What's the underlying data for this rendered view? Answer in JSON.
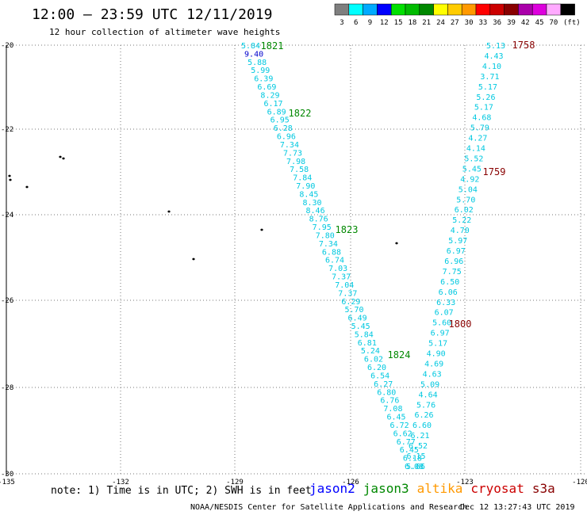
{
  "header": {
    "title": "12:00 – 23:59 UTC 12/11/2019",
    "subtitle": "12 hour collection of altimeter wave heights"
  },
  "legend": {
    "unit": "(ft)",
    "bins": [
      {
        "label": "3",
        "color": "#7f7f7f"
      },
      {
        "label": "6",
        "color": "#00ffff"
      },
      {
        "label": "9",
        "color": "#00aaff"
      },
      {
        "label": "12",
        "color": "#0000ff"
      },
      {
        "label": "15",
        "color": "#00e000"
      },
      {
        "label": "18",
        "color": "#00bb00"
      },
      {
        "label": "21",
        "color": "#008800"
      },
      {
        "label": "24",
        "color": "#ffff00"
      },
      {
        "label": "27",
        "color": "#ffcc00"
      },
      {
        "label": "30",
        "color": "#ff9900"
      },
      {
        "label": "33",
        "color": "#ff0000"
      },
      {
        "label": "36",
        "color": "#cc0000"
      },
      {
        "label": "39",
        "color": "#880000"
      },
      {
        "label": "42",
        "color": "#aa00aa"
      },
      {
        "label": "45",
        "color": "#dd00dd"
      },
      {
        "label": "70",
        "color": "#ffaaff"
      },
      {
        "label": "",
        "color": "#000000"
      }
    ]
  },
  "map": {
    "lat_ticks": [
      "-20",
      "-22",
      "-24",
      "-26",
      "-28",
      "-30"
    ],
    "lon_ticks": [
      "-135",
      "-132",
      "-129",
      "-126",
      "-123",
      "-120"
    ],
    "time_labels": [
      {
        "text": "1821",
        "color": "#008800"
      },
      {
        "text": "1822",
        "color": "#008800"
      },
      {
        "text": "1823",
        "color": "#008800"
      },
      {
        "text": "1824",
        "color": "#008800"
      },
      {
        "text": "1758",
        "color": "#880000"
      },
      {
        "text": "1759",
        "color": "#880000"
      },
      {
        "text": "1800",
        "color": "#880000"
      }
    ],
    "tracks": [
      {
        "name": "jason3 pass",
        "values": [
          "5.84",
          "9.40",
          "5.88",
          "5.99",
          "6.39",
          "6.69",
          "8.29",
          "6.17",
          "6.89",
          "6.95",
          "6.28",
          "6.96",
          "7.34",
          "7.73",
          "7.98",
          "7.58",
          "7.84",
          "7.90",
          "8.45",
          "8.30",
          "8.46",
          "8.76",
          "7.95",
          "7.80",
          "7.34",
          "6.88",
          "6.74",
          "7.03",
          "7.37",
          "7.04",
          "7.37",
          "6.29",
          "5.70",
          "6.49",
          "5.45",
          "5.84",
          "6.81",
          "5.24",
          "6.02",
          "6.20",
          "6.54",
          "6.27",
          "6.80",
          "6.76",
          "7.08",
          "6.45",
          "6.72",
          "6.62",
          "6.77",
          "6.45",
          "6.18",
          "5.66"
        ]
      },
      {
        "name": "cryosat pass",
        "values": [
          "5.13",
          "4.43",
          "4.10",
          "3.71",
          "5.17",
          "5.26",
          "5.17",
          "4.68",
          "5.79",
          "4.27",
          "4.14",
          "5.52",
          "5.45",
          "4.92",
          "5.04",
          "5.70",
          "6.02",
          "5.22",
          "4.70",
          "5.97",
          "6.97",
          "6.96",
          "7.75",
          "6.50",
          "6.06",
          "6.33",
          "6.07",
          "5.60",
          "6.97",
          "5.17",
          "4.90",
          "4.69",
          "4.63",
          "5.09",
          "4.64",
          "5.76",
          "6.26",
          "6.60",
          "6.21",
          "6.52",
          "6.15",
          "6.08"
        ]
      }
    ]
  },
  "footer": {
    "note": "note: 1) Time is in UTC; 2) SWH is in feet",
    "satellites": [
      {
        "name": "jason2",
        "color": "#0000ff"
      },
      {
        "name": "jason3",
        "color": "#008800"
      },
      {
        "name": "altika",
        "color": "#ff9900"
      },
      {
        "name": "cryosat",
        "color": "#cc0000"
      },
      {
        "name": "s3a",
        "color": "#880000"
      }
    ],
    "credit": "NOAA/NESDIS Center for Satellite Applications and Research",
    "timestamp": "Dec 12 13:27:43 UTC 2019"
  }
}
